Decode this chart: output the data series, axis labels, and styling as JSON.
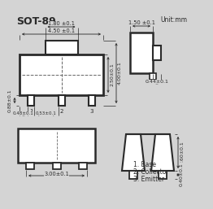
{
  "title": "SOT-89",
  "unit_label": "Unit:mm",
  "bg_color": "#d4d4d4",
  "line_color": "#2a2a2a",
  "dashed_color": "#666666",
  "legend": [
    "1. Base",
    "2. Collector",
    "3. Emitter"
  ],
  "dims": {
    "top_width": "4.50 ±0.1",
    "inner_width": "1.80 ±0.1",
    "height_inner": "2.50±0.1",
    "height_outer": "4.00±0.1",
    "tab_left": "0.48±0.1",
    "tab_spacing": "0.53±0.1",
    "tab_height": "0.88±0.1",
    "bottom_width": "3.00±0.1",
    "side_width": "1.50 ±0.1",
    "side_height": "0.44±0.1",
    "front_height": "2.60±0.1",
    "front_bot": "0.40±0.1"
  }
}
